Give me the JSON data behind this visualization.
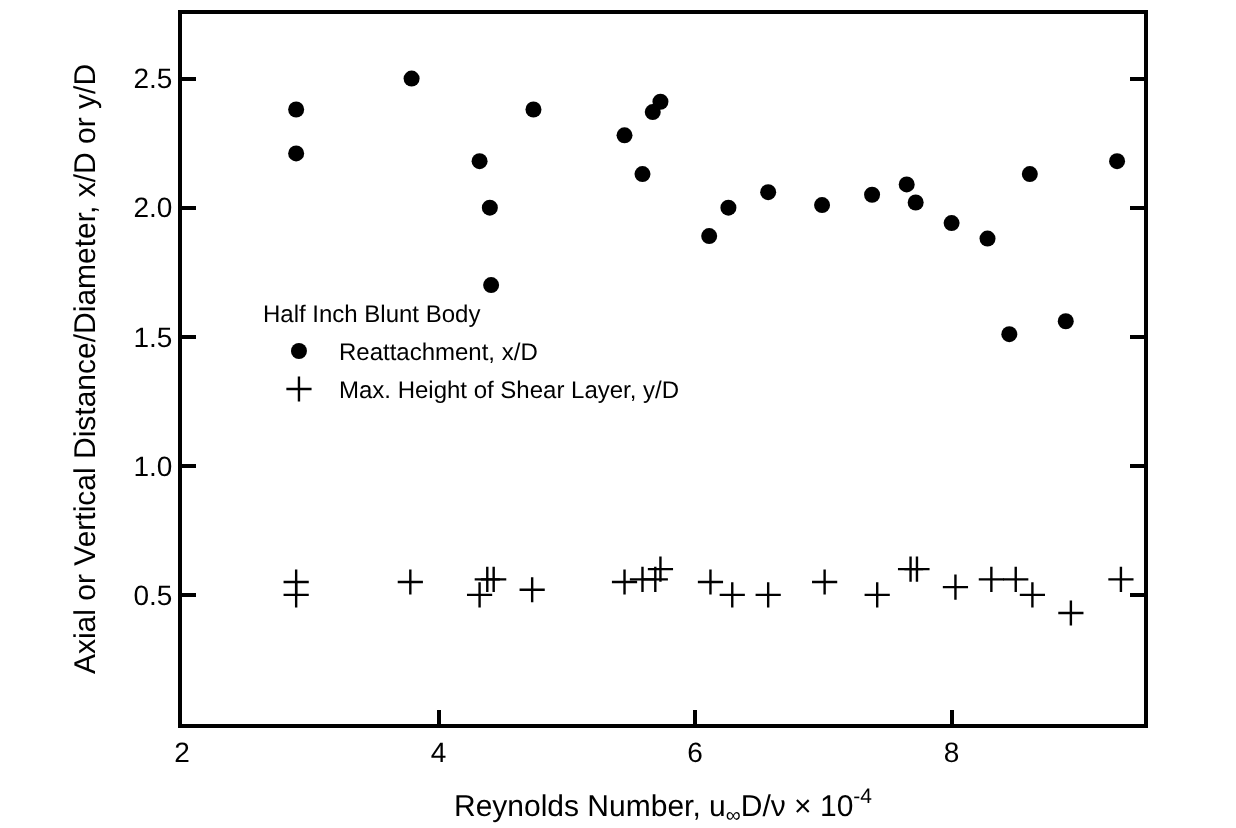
{
  "chart_data": {
    "type": "scatter",
    "xlabel": "Reynolds Number, u$_{∞}$D/ν × 10$^{-4}$",
    "ylabel": "Axial or Vertical Distance/Diameter, x/D or y/D",
    "legend_title": "Half Inch Blunt Body",
    "legend": "left",
    "xlim": [
      2,
      9.5
    ],
    "xticks": [
      2,
      4,
      6,
      8
    ],
    "ylim": [
      0,
      2.75
    ],
    "yticks": [
      {
        "value": 0.5,
        "label": "0.5"
      },
      {
        "value": 1.0,
        "label": "1.0"
      },
      {
        "value": 1.5,
        "label": "1.5"
      },
      {
        "value": 2.0,
        "label": "2.0"
      },
      {
        "value": 2.5,
        "label": "2.5"
      }
    ],
    "series": [
      {
        "name": "Reattachment, x/D",
        "color": "#000000",
        "marker": "circle",
        "x": [
          2.89,
          2.89,
          3.79,
          4.32,
          4.4,
          4.41,
          4.74,
          5.45,
          5.59,
          5.67,
          5.73,
          6.11,
          6.26,
          6.57,
          6.99,
          7.38,
          7.65,
          7.72,
          8.0,
          8.28,
          8.45,
          8.61,
          8.89,
          9.29
        ],
        "values": [
          2.38,
          2.21,
          2.5,
          2.18,
          2.0,
          1.7,
          2.38,
          2.28,
          2.13,
          2.37,
          2.41,
          1.89,
          2.0,
          2.06,
          2.01,
          2.05,
          2.09,
          2.02,
          1.94,
          1.88,
          1.51,
          2.13,
          1.56,
          2.18
        ]
      },
      {
        "name": "Max. Height of Shear Layer, y/D",
        "color": "#000000",
        "marker": "cross",
        "x": [
          2.89,
          2.89,
          3.78,
          4.32,
          4.38,
          4.43,
          4.73,
          5.45,
          5.59,
          5.69,
          5.73,
          6.12,
          6.29,
          6.57,
          7.01,
          7.42,
          7.68,
          7.73,
          8.03,
          8.31,
          8.5,
          8.63,
          8.93,
          9.32
        ],
        "values": [
          0.55,
          0.5,
          0.55,
          0.5,
          0.56,
          0.56,
          0.52,
          0.55,
          0.56,
          0.56,
          0.6,
          0.55,
          0.5,
          0.5,
          0.55,
          0.5,
          0.6,
          0.6,
          0.53,
          0.56,
          0.56,
          0.5,
          0.43,
          0.56
        ]
      }
    ]
  }
}
